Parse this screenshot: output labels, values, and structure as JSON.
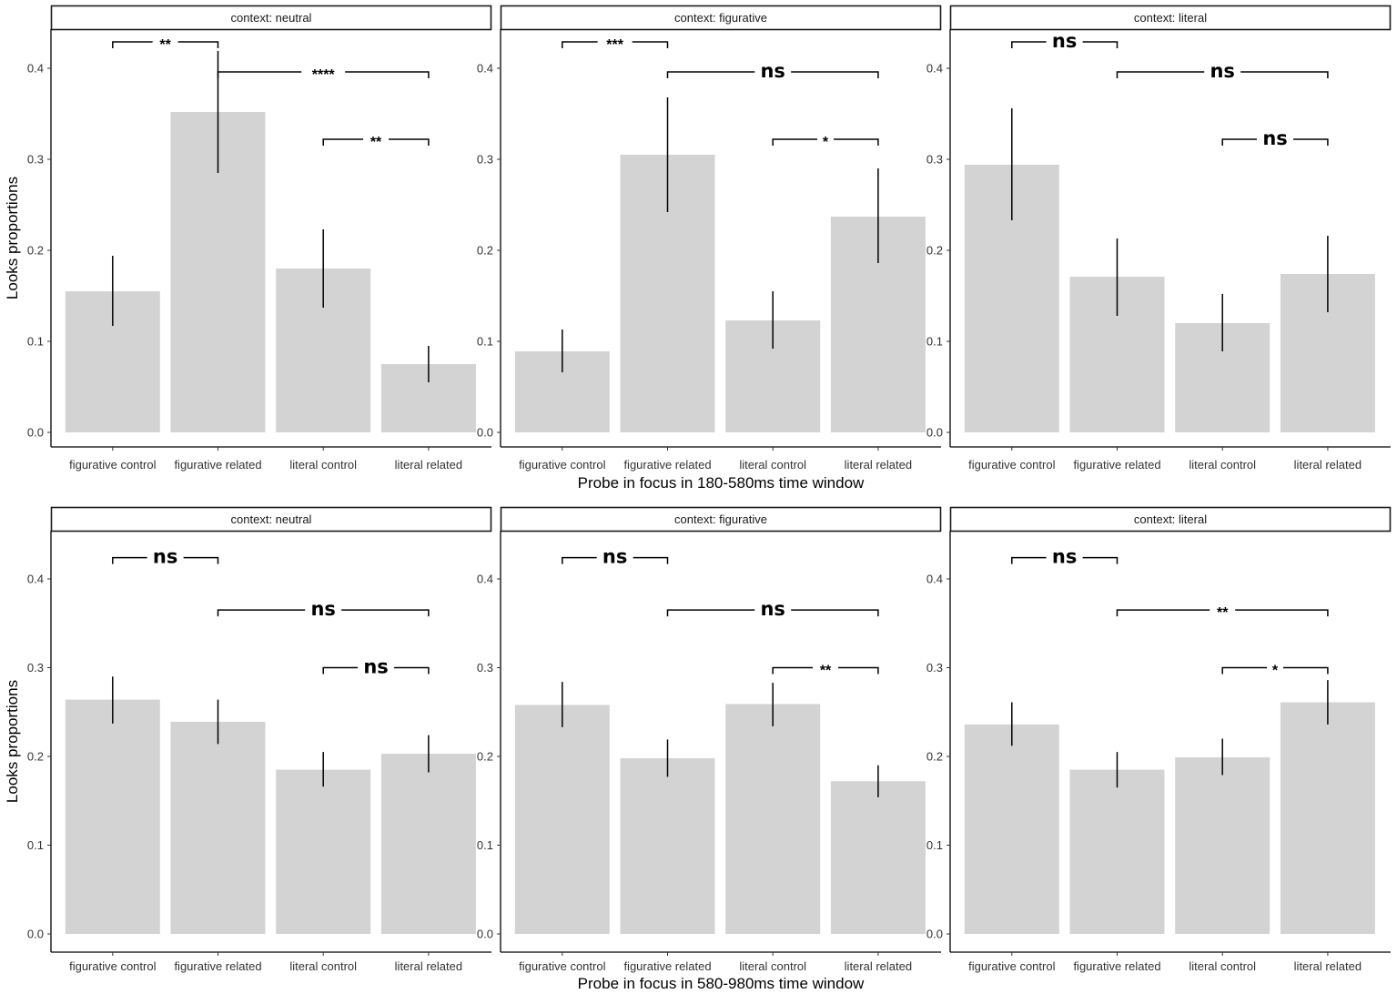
{
  "figure": {
    "y_axis_title": "Looks proportions"
  },
  "chart_data": [
    {
      "type": "bar",
      "row": "top",
      "facet": "context: neutral",
      "xlabel": "Probe in focus in 180-580ms time window",
      "ylabel": "Looks proportions",
      "ylim": [
        0,
        0.44
      ],
      "yticks": [
        "0.0",
        "0.1",
        "0.2",
        "0.3",
        "0.4"
      ],
      "categories": [
        "figurative control",
        "figurative related",
        "literal control",
        "literal related"
      ],
      "values": [
        0.155,
        0.352,
        0.18,
        0.075
      ],
      "error_low": [
        0.117,
        0.285,
        0.137,
        0.055
      ],
      "error_high": [
        0.194,
        0.419,
        0.223,
        0.095
      ],
      "comparisons": [
        {
          "from": "figurative control",
          "to": "figurative related",
          "y": 0.429,
          "label": "**"
        },
        {
          "from": "figurative related",
          "to": "literal related",
          "y": 0.396,
          "label": "****"
        },
        {
          "from": "literal control",
          "to": "literal related",
          "y": 0.322,
          "label": "**"
        }
      ]
    },
    {
      "type": "bar",
      "row": "top",
      "facet": "context: figurative",
      "xlabel": "Probe in focus in 180-580ms time window",
      "ylabel": "Looks proportions",
      "ylim": [
        0,
        0.44
      ],
      "yticks": [
        "0.0",
        "0.1",
        "0.2",
        "0.3",
        "0.4"
      ],
      "categories": [
        "figurative control",
        "figurative related",
        "literal control",
        "literal related"
      ],
      "values": [
        0.089,
        0.305,
        0.123,
        0.237
      ],
      "error_low": [
        0.066,
        0.242,
        0.092,
        0.186
      ],
      "error_high": [
        0.113,
        0.368,
        0.155,
        0.29
      ],
      "comparisons": [
        {
          "from": "figurative control",
          "to": "figurative related",
          "y": 0.429,
          "label": "***"
        },
        {
          "from": "figurative related",
          "to": "literal related",
          "y": 0.396,
          "label": "ns"
        },
        {
          "from": "literal control",
          "to": "literal related",
          "y": 0.322,
          "label": "*"
        }
      ]
    },
    {
      "type": "bar",
      "row": "top",
      "facet": "context: literal",
      "xlabel": "Probe in focus in 180-580ms time window",
      "ylabel": "Looks proportions",
      "ylim": [
        0,
        0.44
      ],
      "yticks": [
        "0.0",
        "0.1",
        "0.2",
        "0.3",
        "0.4"
      ],
      "categories": [
        "figurative control",
        "figurative related",
        "literal control",
        "literal related"
      ],
      "values": [
        0.294,
        0.171,
        0.12,
        0.174
      ],
      "error_low": [
        0.233,
        0.128,
        0.089,
        0.132
      ],
      "error_high": [
        0.356,
        0.213,
        0.152,
        0.216
      ],
      "comparisons": [
        {
          "from": "figurative control",
          "to": "figurative related",
          "y": 0.429,
          "label": "ns"
        },
        {
          "from": "figurative related",
          "to": "literal related",
          "y": 0.396,
          "label": "ns"
        },
        {
          "from": "literal control",
          "to": "literal related",
          "y": 0.322,
          "label": "ns"
        }
      ]
    },
    {
      "type": "bar",
      "row": "bottom",
      "facet": "context: neutral",
      "xlabel": "Probe in focus in 580-980ms time window",
      "ylabel": "Looks proportions",
      "ylim": [
        0,
        0.44
      ],
      "yticks": [
        "0.0",
        "0.1",
        "0.2",
        "0.3",
        "0.4"
      ],
      "categories": [
        "figurative control",
        "figurative related",
        "literal control",
        "literal related"
      ],
      "values": [
        0.264,
        0.239,
        0.185,
        0.203
      ],
      "error_low": [
        0.237,
        0.214,
        0.166,
        0.182
      ],
      "error_high": [
        0.29,
        0.264,
        0.205,
        0.224
      ],
      "comparisons": [
        {
          "from": "figurative control",
          "to": "figurative related",
          "y": 0.424,
          "label": "ns"
        },
        {
          "from": "figurative related",
          "to": "literal related",
          "y": 0.365,
          "label": "ns"
        },
        {
          "from": "literal control",
          "to": "literal related",
          "y": 0.3,
          "label": "ns"
        }
      ]
    },
    {
      "type": "bar",
      "row": "bottom",
      "facet": "context: figurative",
      "xlabel": "Probe in focus in 580-980ms time window",
      "ylabel": "Looks proportions",
      "ylim": [
        0,
        0.44
      ],
      "yticks": [
        "0.0",
        "0.1",
        "0.2",
        "0.3",
        "0.4"
      ],
      "categories": [
        "figurative control",
        "figurative related",
        "literal control",
        "literal related"
      ],
      "values": [
        0.258,
        0.198,
        0.259,
        0.172
      ],
      "error_low": [
        0.233,
        0.177,
        0.234,
        0.154
      ],
      "error_high": [
        0.284,
        0.219,
        0.283,
        0.19
      ],
      "comparisons": [
        {
          "from": "figurative control",
          "to": "figurative related",
          "y": 0.424,
          "label": "ns"
        },
        {
          "from": "figurative related",
          "to": "literal related",
          "y": 0.365,
          "label": "ns"
        },
        {
          "from": "literal control",
          "to": "literal related",
          "y": 0.3,
          "label": "**"
        }
      ]
    },
    {
      "type": "bar",
      "row": "bottom",
      "facet": "context: literal",
      "xlabel": "Probe in focus in 580-980ms time window",
      "ylabel": "Looks proportions",
      "ylim": [
        0,
        0.44
      ],
      "yticks": [
        "0.0",
        "0.1",
        "0.2",
        "0.3",
        "0.4"
      ],
      "categories": [
        "figurative control",
        "figurative related",
        "literal control",
        "literal related"
      ],
      "values": [
        0.236,
        0.185,
        0.199,
        0.261
      ],
      "error_low": [
        0.212,
        0.165,
        0.179,
        0.236
      ],
      "error_high": [
        0.261,
        0.205,
        0.22,
        0.286
      ],
      "comparisons": [
        {
          "from": "figurative control",
          "to": "figurative related",
          "y": 0.424,
          "label": "ns"
        },
        {
          "from": "figurative related",
          "to": "literal related",
          "y": 0.365,
          "label": "**"
        },
        {
          "from": "literal control",
          "to": "literal related",
          "y": 0.3,
          "label": "*"
        }
      ]
    }
  ]
}
